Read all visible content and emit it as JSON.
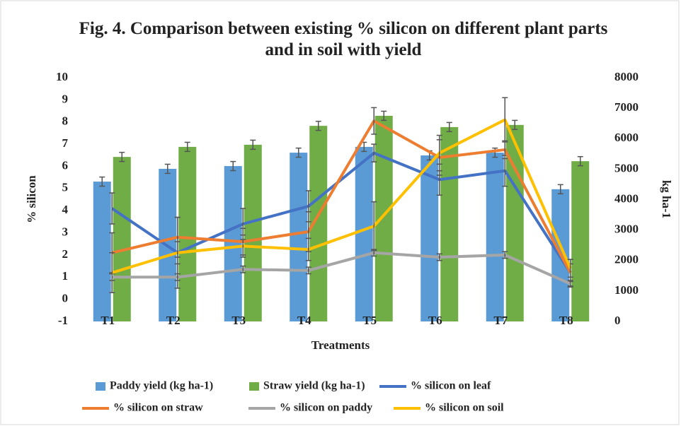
{
  "chart_data": {
    "type": "combo",
    "title": "Fig. 4. Comparison between existing % silicon on different plant parts and in soil with yield",
    "x_label": "Treatments",
    "y_label": "% silicon",
    "y2_label": "kg ha-1",
    "categories": [
      "T1",
      "T2",
      "T3",
      "T4",
      "T5",
      "T6",
      "T7",
      "T8"
    ],
    "ylim": [
      -1,
      10
    ],
    "yticks": [
      -1,
      0,
      1,
      2,
      3,
      4,
      5,
      6,
      7,
      8,
      9,
      10
    ],
    "y2lim": [
      0,
      8000
    ],
    "y2ticks": [
      0,
      1000,
      2000,
      3000,
      4000,
      5000,
      6000,
      7000,
      8000
    ],
    "grid": false,
    "legend": "bottom",
    "series": [
      {
        "name": "Paddy yield  (kg ha-1)",
        "kind": "bar",
        "axis": "y2",
        "color": "#5b9bd5",
        "values": [
          4590,
          5010,
          5100,
          5540,
          5730,
          5450,
          5540,
          4340
        ],
        "errors": [
          150,
          150,
          150,
          150,
          150,
          150,
          150,
          150
        ]
      },
      {
        "name": "Straw yield  (kg ha-1)",
        "kind": "bar",
        "axis": "y2",
        "color": "#70ad47",
        "values": [
          5400,
          5730,
          5800,
          6420,
          6750,
          6380,
          6450,
          5260
        ],
        "errors": [
          150,
          150,
          150,
          150,
          150,
          150,
          150,
          150
        ]
      },
      {
        "name": "% silicon on leaf",
        "kind": "line",
        "color": "#4472c4",
        "values": [
          4.1,
          2.1,
          3.4,
          4.2,
          6.6,
          5.4,
          5.8,
          1.2
        ],
        "errors": [
          0.7,
          1.6,
          0.7,
          0.7,
          0.4,
          0.7,
          0.7,
          0.4
        ]
      },
      {
        "name": "% silicon on straw",
        "kind": "line",
        "color": "#ed7d31",
        "values": [
          2.1,
          2.8,
          2.6,
          3.05,
          8.05,
          6.4,
          6.75,
          1.2
        ],
        "errors": [
          0.9,
          0.9,
          0.6,
          0.9,
          0.6,
          0.8,
          0.4,
          0.6
        ]
      },
      {
        "name": "% silicon on paddy",
        "kind": "line",
        "color": "#a5a5a5",
        "values": [
          1.0,
          1.0,
          1.35,
          1.3,
          2.1,
          1.9,
          2.0,
          0.7
        ],
        "errors": [
          0.15,
          0.15,
          0.15,
          0.15,
          0.15,
          0.15,
          0.15,
          0.15
        ]
      },
      {
        "name": "% silicon on soil",
        "kind": "line",
        "color": "#ffc000",
        "values": [
          1.2,
          2.1,
          2.4,
          2.25,
          3.3,
          6.6,
          8.1,
          1.4
        ],
        "errors": [
          0.9,
          0.5,
          0.5,
          0.5,
          1.1,
          0.8,
          1.0,
          0.4
        ]
      }
    ]
  }
}
